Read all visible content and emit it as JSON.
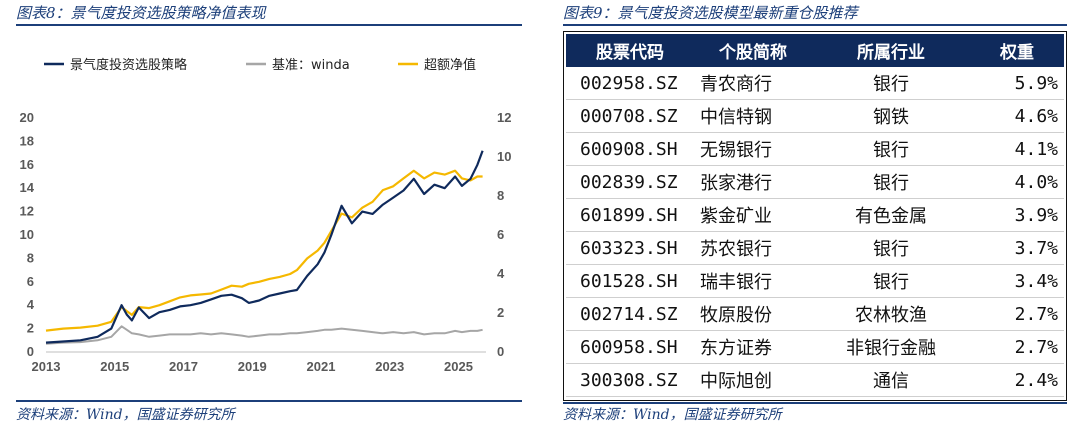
{
  "left_panel": {
    "title": "图表8：景气度投资选股策略净值表现",
    "source": "资料来源：Wind，国盛证券研究所"
  },
  "right_panel": {
    "title": "图表9：景气度投资选股模型最新重仓股推荐",
    "source": "资料来源：Wind，国盛证券研究所",
    "columns": [
      "股票代码",
      "个股简称",
      "所属行业",
      "权重"
    ],
    "rows": [
      {
        "code": "002958.SZ",
        "name": "青农商行",
        "industry": "银行",
        "weight": "5.9%"
      },
      {
        "code": "000708.SZ",
        "name": "中信特钢",
        "industry": "钢铁",
        "weight": "4.6%"
      },
      {
        "code": "600908.SH",
        "name": "无锡银行",
        "industry": "银行",
        "weight": "4.1%"
      },
      {
        "code": "002839.SZ",
        "name": "张家港行",
        "industry": "银行",
        "weight": "4.0%"
      },
      {
        "code": "601899.SH",
        "name": "紫金矿业",
        "industry": "有色金属",
        "weight": "3.9%"
      },
      {
        "code": "603323.SH",
        "name": "苏农银行",
        "industry": "银行",
        "weight": "3.7%"
      },
      {
        "code": "601528.SH",
        "name": "瑞丰银行",
        "industry": "银行",
        "weight": "3.4%"
      },
      {
        "code": "002714.SZ",
        "name": "牧原股份",
        "industry": "农林牧渔",
        "weight": "2.7%"
      },
      {
        "code": "600958.SH",
        "name": "东方证券",
        "industry": "非银行金融",
        "weight": "2.7%"
      },
      {
        "code": "300308.SZ",
        "name": "中际旭创",
        "industry": "通信",
        "weight": "2.4%"
      }
    ]
  },
  "chart_data": {
    "type": "line",
    "title": "",
    "legend_placement": "top",
    "grid": false,
    "xlim": [
      2013,
      2025.8
    ],
    "x_ticks": [
      "2013",
      "2015",
      "2017",
      "2019",
      "2021",
      "2023",
      "2025"
    ],
    "y_left": {
      "lim": [
        0,
        20
      ],
      "ticks": [
        "0",
        "2",
        "4",
        "6",
        "8",
        "10",
        "12",
        "14",
        "16",
        "18",
        "20"
      ]
    },
    "y_right": {
      "lim": [
        0,
        12
      ],
      "ticks": [
        "0",
        "2",
        "4",
        "6",
        "8",
        "10",
        "12"
      ]
    },
    "x": [
      2013.0,
      2013.5,
      2014.0,
      2014.5,
      2014.9,
      2015.2,
      2015.35,
      2015.5,
      2015.7,
      2016.0,
      2016.3,
      2016.6,
      2016.9,
      2017.2,
      2017.5,
      2017.8,
      2018.1,
      2018.4,
      2018.7,
      2018.9,
      2019.2,
      2019.5,
      2019.8,
      2020.1,
      2020.3,
      2020.6,
      2020.9,
      2021.1,
      2021.3,
      2021.6,
      2021.9,
      2022.2,
      2022.5,
      2022.8,
      2023.1,
      2023.4,
      2023.7,
      2024.0,
      2024.3,
      2024.6,
      2024.9,
      2025.1,
      2025.35,
      2025.55,
      2025.7
    ],
    "series": [
      {
        "name": "景气度投资选股策略",
        "axis": "left",
        "color": "#0f2a5c",
        "values": [
          0.8,
          0.9,
          1.0,
          1.3,
          2.0,
          4.0,
          3.2,
          2.7,
          3.8,
          2.9,
          3.4,
          3.6,
          3.9,
          4.0,
          4.2,
          4.5,
          4.8,
          4.9,
          4.6,
          4.2,
          4.4,
          4.8,
          5.0,
          5.2,
          5.3,
          6.5,
          7.5,
          8.5,
          10.0,
          12.5,
          11.0,
          12.0,
          11.8,
          12.6,
          13.2,
          13.8,
          14.8,
          13.5,
          14.3,
          14.0,
          15.0,
          14.2,
          14.8,
          16.0,
          17.2
        ]
      },
      {
        "name": "基准：winda",
        "axis": "left",
        "color": "#a6a6a6",
        "values": [
          0.7,
          0.8,
          0.85,
          1.0,
          1.3,
          2.2,
          1.9,
          1.6,
          1.5,
          1.3,
          1.4,
          1.5,
          1.5,
          1.5,
          1.6,
          1.5,
          1.6,
          1.5,
          1.4,
          1.3,
          1.4,
          1.5,
          1.5,
          1.6,
          1.6,
          1.7,
          1.8,
          1.9,
          1.9,
          2.0,
          1.9,
          1.8,
          1.7,
          1.6,
          1.7,
          1.6,
          1.7,
          1.5,
          1.6,
          1.6,
          1.8,
          1.7,
          1.8,
          1.8,
          1.9
        ]
      },
      {
        "name": "超额净值",
        "axis": "right",
        "color": "#f5b800",
        "values": [
          1.1,
          1.2,
          1.25,
          1.35,
          1.55,
          2.3,
          2.1,
          1.9,
          2.3,
          2.25,
          2.4,
          2.6,
          2.8,
          2.9,
          2.95,
          3.0,
          3.2,
          3.4,
          3.35,
          3.5,
          3.6,
          3.75,
          3.85,
          4.0,
          4.2,
          4.8,
          5.2,
          5.6,
          6.2,
          7.1,
          6.9,
          7.4,
          7.7,
          8.3,
          8.5,
          8.9,
          9.3,
          8.9,
          9.2,
          9.1,
          9.3,
          8.9,
          8.8,
          9.0,
          9.0
        ]
      }
    ]
  }
}
